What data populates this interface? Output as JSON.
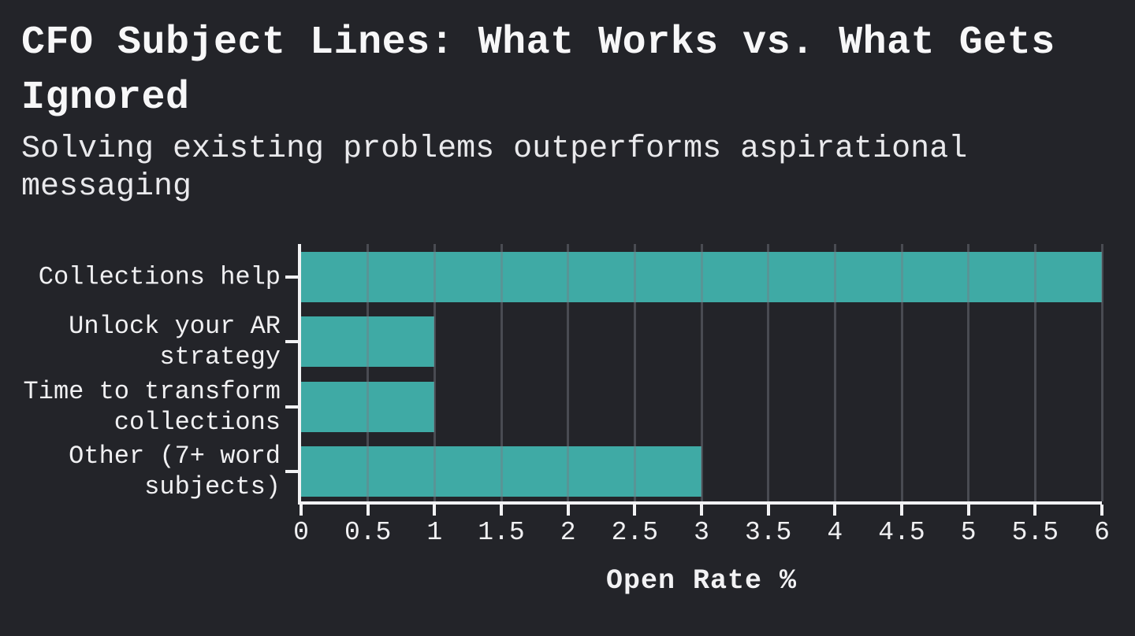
{
  "header": {
    "title": "CFO Subject Lines: What Works vs. What Gets Ignored",
    "subtitle": "Solving existing problems outperforms aspirational messaging"
  },
  "chart_data": {
    "type": "bar",
    "orientation": "horizontal",
    "title": "CFO Subject Lines: What Works vs. What Gets Ignored",
    "subtitle": "Solving existing problems outperforms aspirational messaging",
    "categories": [
      "Collections help",
      "Unlock your AR strategy",
      "Time to transform collections",
      "Other (7+ word subjects)"
    ],
    "category_lines": [
      [
        "Collections help"
      ],
      [
        "Unlock your AR",
        "strategy"
      ],
      [
        "Time to transform",
        "collections"
      ],
      [
        "Other (7+ word",
        "subjects)"
      ]
    ],
    "values": [
      6,
      1,
      1,
      3
    ],
    "xlabel": "Open Rate %",
    "ylabel": "",
    "xlim": [
      0,
      6
    ],
    "xticks": [
      0,
      0.5,
      1,
      1.5,
      2,
      2.5,
      3,
      3.5,
      4,
      4.5,
      5,
      5.5,
      6
    ],
    "xtick_labels": [
      "0",
      "0.5",
      "1",
      "1.5",
      "2",
      "2.5",
      "3",
      "3.5",
      "4",
      "4.5",
      "5",
      "5.5",
      "6"
    ],
    "grid": true,
    "legend": false,
    "colors": {
      "bar": "#3FAAA5",
      "background": "#232429",
      "axis": "#F2F2F4",
      "grid_rgba": "rgba(120,124,134,0.45)",
      "title_text": "#F7F7F8",
      "subtitle_text": "#E9E9EC",
      "tick_text": "#F0F0F2"
    }
  }
}
